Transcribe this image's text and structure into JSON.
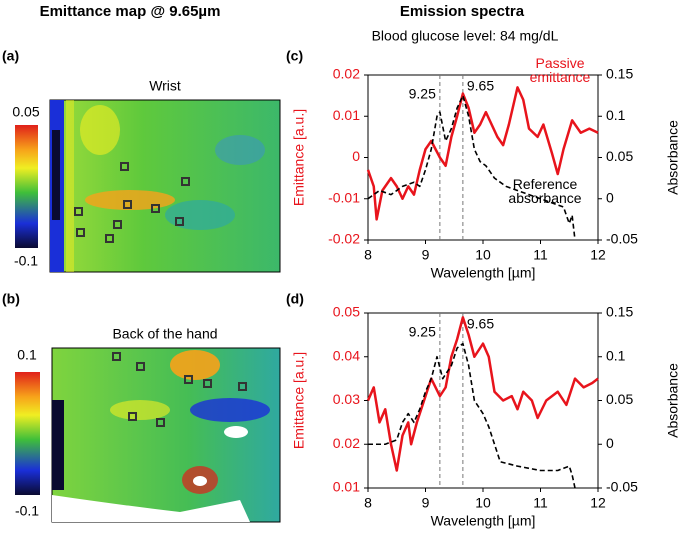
{
  "headings": [
    "Emittance map @ 9.65µm",
    "Emission spectra"
  ],
  "subtitle": "Blood glucose level: 84 mg/dL",
  "maps": [
    {
      "label": "(a)",
      "title": "Wrist",
      "colorbar": [
        0.05,
        -0.1
      ]
    },
    {
      "label": "(b)",
      "title": "Back of the hand",
      "colorbar": [
        0.1,
        -0.1
      ]
    }
  ],
  "chart_data": [
    {
      "type": "line",
      "label": "(c)",
      "xlabel": "Wavelength [µm]",
      "ylabel": "Emittance [a.u.]",
      "y2label": "Absorbance",
      "xlim": [
        8,
        12
      ],
      "xticks": [
        8,
        9,
        10,
        11,
        12
      ],
      "ylim": [
        -0.02,
        0.02
      ],
      "yticks": [
        -0.02,
        -0.01,
        0,
        0.01,
        0.02
      ],
      "y2lim": [
        -0.05,
        0.15
      ],
      "y2ticks": [
        -0.05,
        0,
        0.05,
        0.1,
        0.15
      ],
      "vlines": [
        9.25,
        9.65
      ],
      "series": [
        {
          "name": "Passive emittance",
          "color": "#e8141c",
          "x": [
            8.0,
            8.1,
            8.15,
            8.25,
            8.4,
            8.5,
            8.6,
            8.7,
            8.8,
            8.9,
            9.0,
            9.1,
            9.25,
            9.35,
            9.45,
            9.55,
            9.65,
            9.75,
            9.85,
            9.95,
            10.05,
            10.15,
            10.25,
            10.35,
            10.45,
            10.6,
            10.7,
            10.8,
            10.95,
            11.05,
            11.2,
            11.3,
            11.4,
            11.55,
            11.7,
            11.85,
            12.0
          ],
          "values": [
            -0.003,
            -0.007,
            -0.015,
            -0.008,
            -0.005,
            -0.007,
            -0.01,
            -0.007,
            -0.009,
            -0.003,
            0.002,
            0.004,
            0.0,
            -0.002,
            0.005,
            0.01,
            0.0155,
            0.012,
            0.006,
            0.008,
            0.011,
            0.008,
            0.005,
            0.003,
            0.008,
            0.017,
            0.014,
            0.007,
            0.005,
            0.008,
            0.001,
            -0.004,
            0.002,
            0.009,
            0.006,
            0.007,
            0.006
          ]
        },
        {
          "name": "Reference absorbance",
          "color": "#000000",
          "axis": "y2",
          "dashed": true,
          "x": [
            8.0,
            8.2,
            8.4,
            8.6,
            8.8,
            8.9,
            9.0,
            9.1,
            9.2,
            9.25,
            9.35,
            9.45,
            9.55,
            9.65,
            9.75,
            9.85,
            9.95,
            10.05,
            10.2,
            10.4,
            10.6,
            10.8,
            11.0,
            11.2,
            11.4,
            11.5,
            11.55,
            11.6
          ],
          "values": [
            0.0,
            0.01,
            0.005,
            0.015,
            0.02,
            0.015,
            0.035,
            0.06,
            0.1,
            0.105,
            0.07,
            0.085,
            0.11,
            0.125,
            0.1,
            0.06,
            0.045,
            0.04,
            0.025,
            0.015,
            0.01,
            0.005,
            0.0,
            -0.005,
            -0.01,
            -0.03,
            -0.02,
            -0.05
          ]
        }
      ]
    },
    {
      "type": "line",
      "label": "(d)",
      "xlabel": "Wavelength [µm]",
      "ylabel": "Emittance [a.u.]",
      "y2label": "Absorbance",
      "xlim": [
        8,
        12
      ],
      "xticks": [
        8,
        9,
        10,
        11,
        12
      ],
      "ylim": [
        0.01,
        0.05
      ],
      "yticks": [
        0.01,
        0.02,
        0.03,
        0.04,
        0.05
      ],
      "y2lim": [
        -0.05,
        0.15
      ],
      "y2ticks": [
        -0.05,
        0,
        0.05,
        0.1,
        0.15
      ],
      "vlines": [
        9.25,
        9.65
      ],
      "series": [
        {
          "color": "#e8141c",
          "x": [
            8.0,
            8.1,
            8.2,
            8.3,
            8.4,
            8.5,
            8.6,
            8.7,
            8.75,
            8.85,
            9.0,
            9.1,
            9.25,
            9.35,
            9.45,
            9.55,
            9.65,
            9.75,
            9.85,
            10.0,
            10.1,
            10.2,
            10.35,
            10.5,
            10.6,
            10.7,
            10.85,
            10.95,
            11.1,
            11.3,
            11.45,
            11.6,
            11.75,
            11.9,
            12.0
          ],
          "values": [
            0.03,
            0.033,
            0.025,
            0.028,
            0.02,
            0.014,
            0.022,
            0.025,
            0.02,
            0.025,
            0.031,
            0.035,
            0.031,
            0.033,
            0.04,
            0.044,
            0.049,
            0.045,
            0.04,
            0.043,
            0.04,
            0.032,
            0.03,
            0.031,
            0.028,
            0.032,
            0.03,
            0.026,
            0.03,
            0.032,
            0.029,
            0.035,
            0.033,
            0.034,
            0.035
          ]
        },
        {
          "color": "#000000",
          "axis": "y2",
          "dashed": true,
          "x": [
            8.0,
            8.3,
            8.5,
            8.6,
            8.7,
            8.8,
            8.9,
            9.0,
            9.1,
            9.2,
            9.3,
            9.45,
            9.55,
            9.65,
            9.75,
            9.85,
            10.0,
            10.1,
            10.3,
            10.6,
            11.0,
            11.3,
            11.5,
            11.55,
            11.6
          ],
          "values": [
            0.0,
            0.0,
            0.005,
            0.025,
            0.035,
            0.025,
            0.04,
            0.06,
            0.075,
            0.1,
            0.075,
            0.09,
            0.11,
            0.115,
            0.09,
            0.05,
            0.035,
            0.02,
            -0.02,
            -0.025,
            -0.03,
            -0.03,
            -0.025,
            -0.035,
            -0.05
          ]
        }
      ]
    }
  ]
}
